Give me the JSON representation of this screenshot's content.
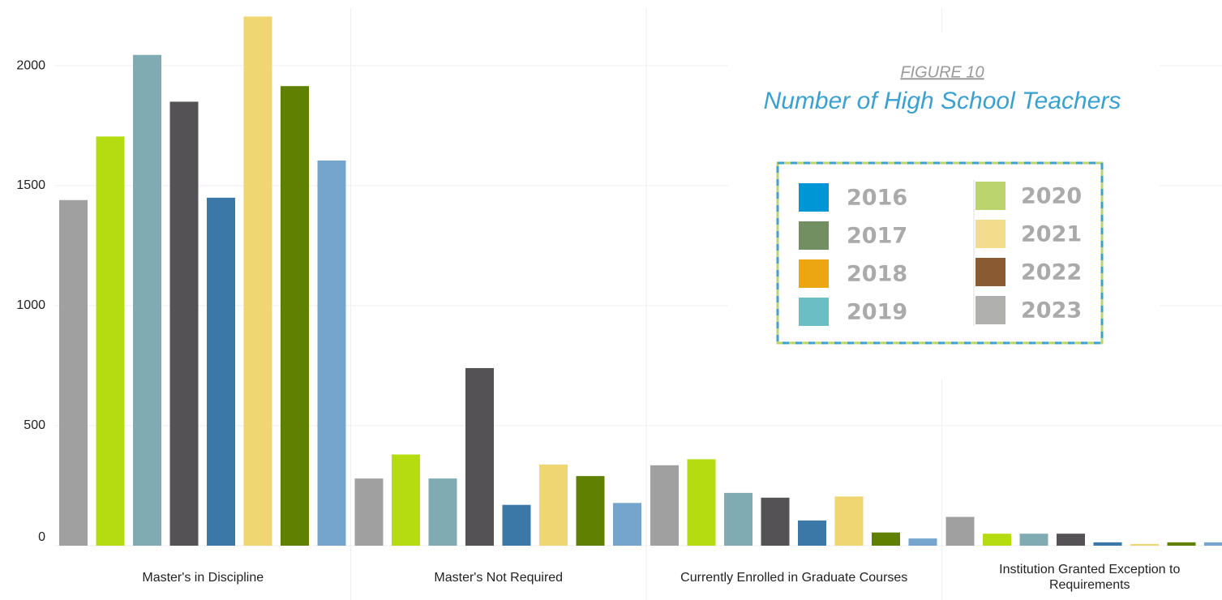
{
  "chart_data": {
    "type": "bar",
    "figure_label": "FIGURE 10",
    "title": "Number of High School Teachers",
    "categories": [
      "Master's in Discipline",
      "Master's Not Required",
      "Currently Enrolled in Graduate Courses",
      "Institution Granted Exception to Requirements"
    ],
    "series": [
      {
        "name": "2016",
        "color": "#a0a0a0",
        "legend_color": "#0096d6",
        "values": [
          1440,
          280,
          335,
          120
        ]
      },
      {
        "name": "2017",
        "color": "#b5dc10",
        "legend_color": "#728f62",
        "values": [
          1705,
          380,
          360,
          50
        ]
      },
      {
        "name": "2018",
        "color": "#80abb2",
        "legend_color": "#eba612",
        "values": [
          2045,
          280,
          220,
          50
        ]
      },
      {
        "name": "2019",
        "color": "#545254",
        "legend_color": "#6bbfc4",
        "values": [
          1850,
          740,
          200,
          50
        ]
      },
      {
        "name": "2020",
        "color": "#3b78a8",
        "legend_color": "#bcd46e",
        "values": [
          1450,
          170,
          105,
          14
        ]
      },
      {
        "name": "2021",
        "color": "#f0d672",
        "legend_color": "#f3dc8b",
        "values": [
          2205,
          338,
          205,
          7
        ]
      },
      {
        "name": "2022",
        "color": "#5f8000",
        "legend_color": "#8a5a32",
        "values": [
          1915,
          290,
          55,
          14
        ]
      },
      {
        "name": "2023",
        "color": "#75a5cc",
        "legend_color": "#b0b1ae",
        "values": [
          1605,
          178,
          30,
          14
        ]
      }
    ],
    "ylim": [
      0,
      2240
    ],
    "yticks": [
      0,
      500,
      1000,
      1500,
      2000
    ],
    "grid": true
  }
}
